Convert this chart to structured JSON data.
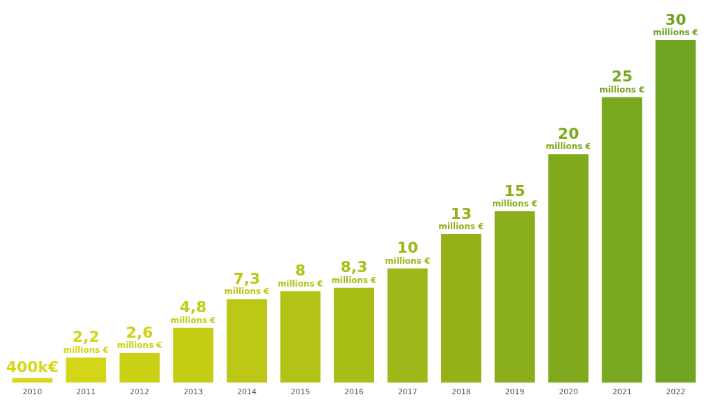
{
  "chart_data": {
    "type": "bar",
    "categories": [
      "2010",
      "2011",
      "2012",
      "2013",
      "2014",
      "2015",
      "2016",
      "2017",
      "2018",
      "2019",
      "2020",
      "2021",
      "2022"
    ],
    "values": [
      400000,
      2200000,
      2600000,
      4800000,
      7300000,
      8000000,
      8300000,
      10000000,
      13000000,
      15000000,
      20000000,
      25000000,
      30000000
    ],
    "value_labels": [
      "400k€",
      "2,2\nmillions €",
      "2,6\nmillions €",
      "4,8\nmillions €",
      "7,3\nmillions €",
      "8\nmillions €",
      "8,3\nmillions €",
      "10\nmillions €",
      "13\nmillions €",
      "15\nmillions €",
      "20\nmillions €",
      "25\nmillions €",
      "30\nmillions €"
    ],
    "colors": [
      "#d6d816",
      "#d3d616",
      "#cbd215",
      "#c4cd14",
      "#bcc815",
      "#b3c316",
      "#a9bd17",
      "#9fb718",
      "#95b119",
      "#8bae1b",
      "#80aa1e",
      "#78a720",
      "#70a523"
    ],
    "grid": false
  }
}
